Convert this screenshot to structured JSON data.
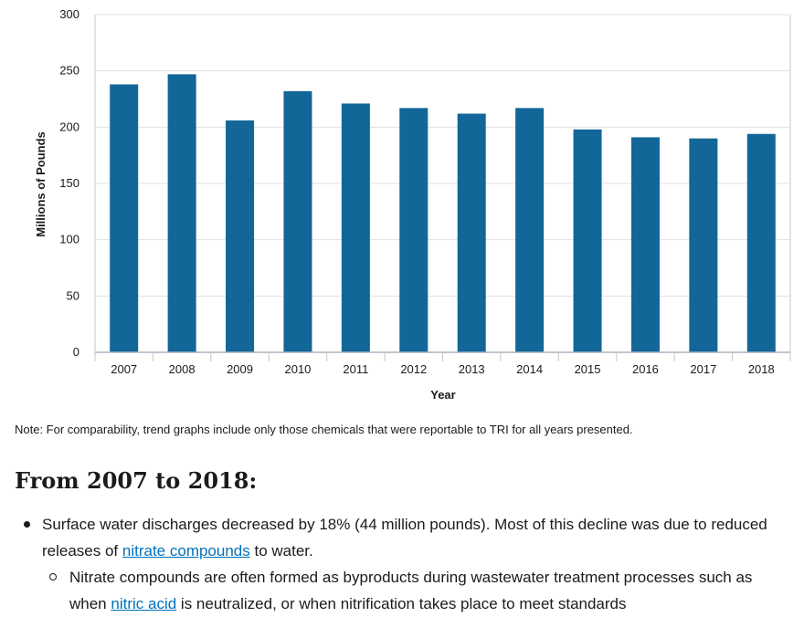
{
  "chart_data": {
    "type": "bar",
    "categories": [
      "2007",
      "2008",
      "2009",
      "2010",
      "2011",
      "2012",
      "2013",
      "2014",
      "2015",
      "2016",
      "2017",
      "2018"
    ],
    "values": [
      238,
      247,
      206,
      232,
      221,
      217,
      212,
      217,
      198,
      191,
      190,
      194
    ],
    "title": "",
    "xlabel": "Year",
    "ylabel": "Millions of Pounds",
    "ylim": [
      0,
      300
    ],
    "yticks": [
      0,
      50,
      100,
      150,
      200,
      250,
      300
    ],
    "grid": true,
    "bar_color": "#126698",
    "grid_color": "#e0e0e0"
  },
  "note": "Note: For comparability, trend graphs include only those chemicals that were reportable to TRI for all years presented.",
  "section": {
    "heading": "From 2007 to 2018:",
    "bullet1": {
      "text_before": "Surface water discharges decreased by 18% (44 million pounds). Most of this decline was due to reduced releases of ",
      "link": "nitrate compounds",
      "text_after": " to water."
    },
    "sub1": {
      "text_before": "Nitrate compounds are often formed as byproducts during wastewater treatment processes such as when ",
      "link": "nitric acid",
      "text_after": " is neutralized, or when nitrification takes place to meet standards"
    }
  },
  "colors": {
    "link": "#0071bc",
    "text": "#1b1b1b"
  }
}
